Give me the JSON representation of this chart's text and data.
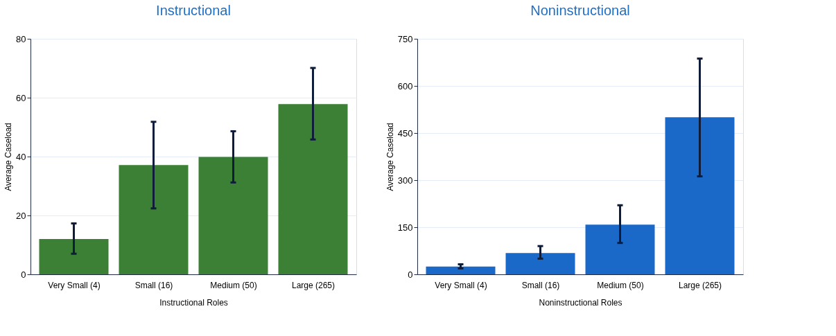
{
  "chart_data": [
    {
      "type": "bar",
      "title": "Instructional",
      "xlabel": "Instructional Roles",
      "ylabel": "Average Caseload",
      "categories": [
        "Very Small (4)",
        "Small (16)",
        "Medium (50)",
        "Large (265)"
      ],
      "values": [
        12,
        37.1,
        39.9,
        57.8
      ],
      "color": "#3b8035",
      "errors": [
        [
          7,
          17.3
        ],
        [
          22.4,
          51.8
        ],
        [
          31.2,
          48.6
        ],
        [
          45.8,
          70.1
        ]
      ],
      "ylim": [
        0,
        80
      ],
      "yticks": [
        0,
        20,
        40,
        60,
        80
      ],
      "grid": "y"
    },
    {
      "type": "bar",
      "title": "Noninstructional",
      "xlabel": "Noninstructional Roles",
      "ylabel": "Average Caseload",
      "categories": [
        "Very Small (4)",
        "Small (16)",
        "Medium (50)",
        "Large (265)"
      ],
      "values": [
        25,
        68,
        158,
        500
      ],
      "color": "#1a69c9",
      "errors": [
        [
          19,
          32
        ],
        [
          50,
          90
        ],
        [
          100,
          220
        ],
        [
          312,
          687
        ]
      ],
      "ylim": [
        0,
        750
      ],
      "yticks": [
        0,
        150,
        300,
        450,
        600,
        750
      ],
      "grid": "y"
    }
  ]
}
